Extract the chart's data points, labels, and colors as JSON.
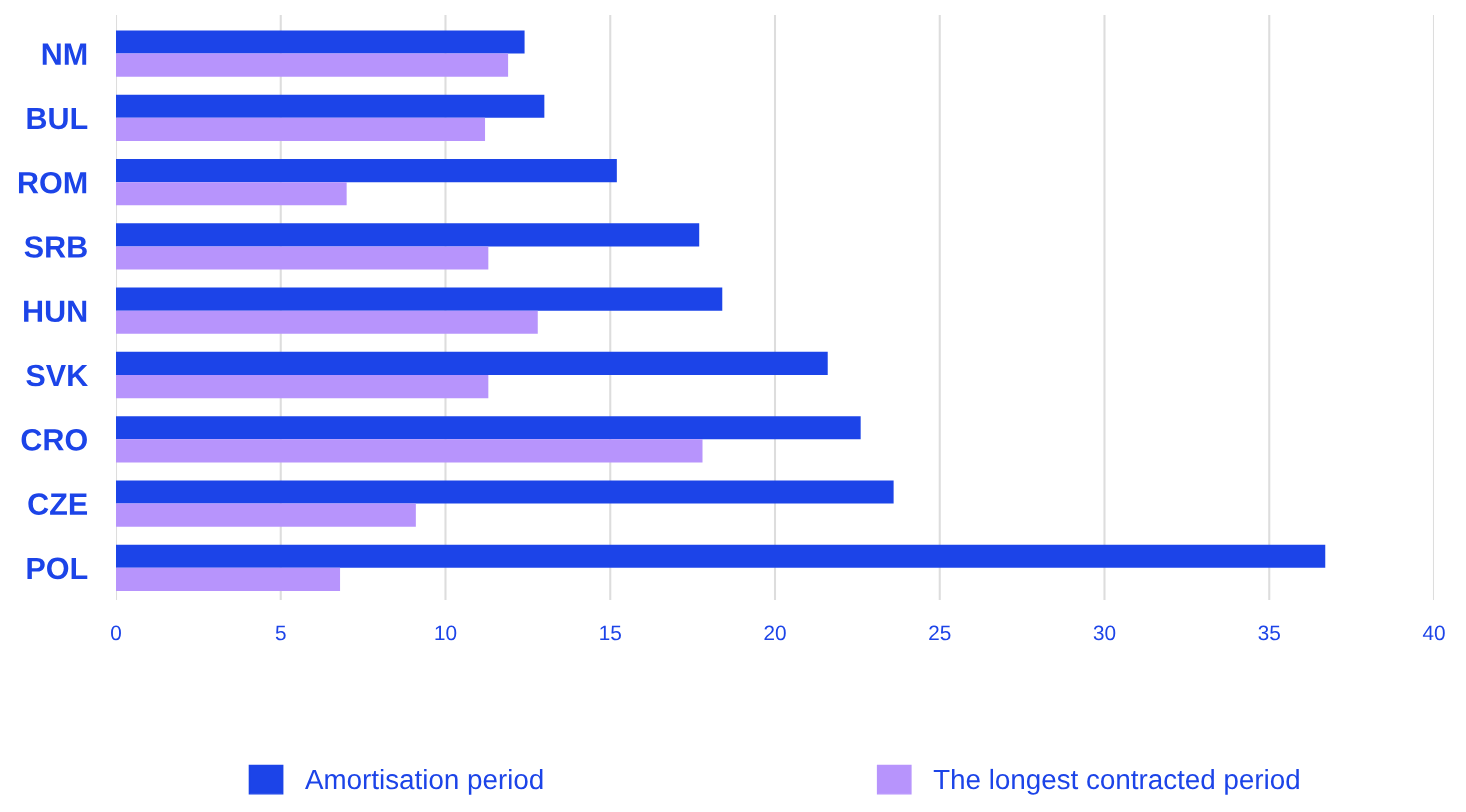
{
  "chart_data": {
    "type": "bar",
    "orientation": "horizontal",
    "categories": [
      "NM",
      "BUL",
      "ROM",
      "SRB",
      "HUN",
      "SVK",
      "CRO",
      "CZE",
      "POL"
    ],
    "series": [
      {
        "name": "Amortisation period",
        "color": "#1c44e8",
        "values": [
          12.4,
          13.0,
          15.2,
          17.7,
          18.4,
          21.6,
          22.6,
          23.6,
          36.7
        ]
      },
      {
        "name": "The longest contracted period",
        "color": "#b794fc",
        "values": [
          11.9,
          11.2,
          7.0,
          11.3,
          12.8,
          11.3,
          17.8,
          9.1,
          6.8
        ]
      }
    ],
    "xlim": [
      0,
      40
    ],
    "xticks": [
      0,
      5,
      10,
      15,
      20,
      25,
      30,
      35,
      40
    ],
    "grid": "x",
    "legend": "bottom"
  }
}
